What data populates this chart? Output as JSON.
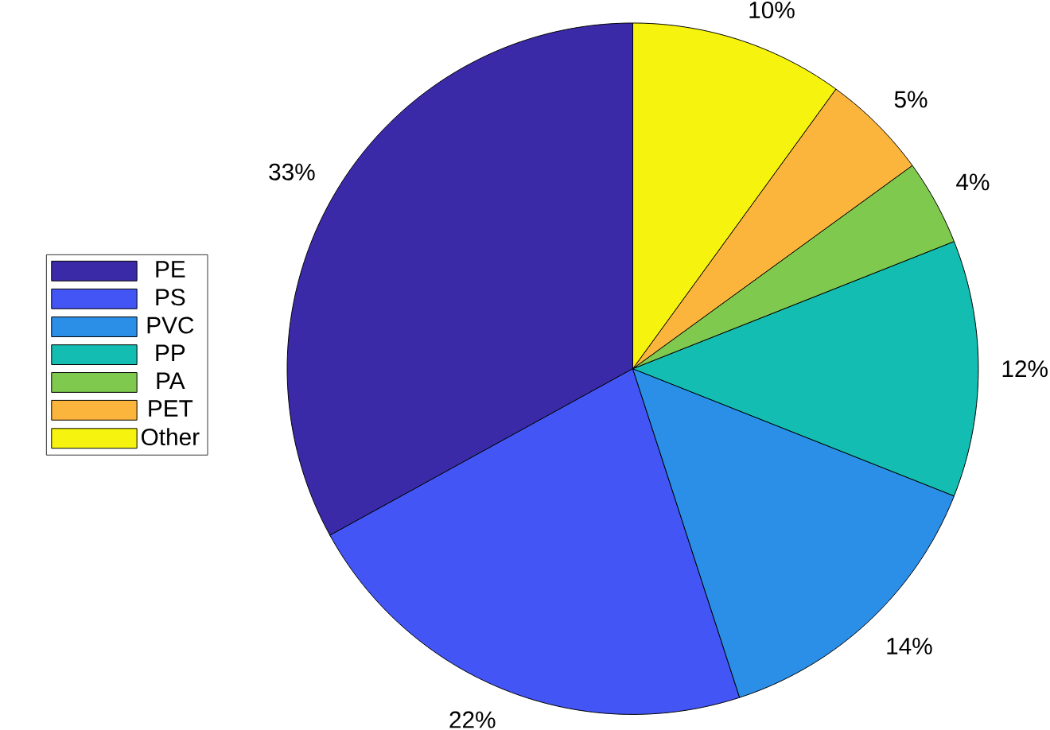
{
  "chart_data": {
    "type": "pie",
    "categories": [
      "PE",
      "PS",
      "PVC",
      "PP",
      "PA",
      "PET",
      "Other"
    ],
    "values": [
      33,
      22,
      14,
      12,
      4,
      5,
      10
    ],
    "value_labels": [
      "33%",
      "22%",
      "14%",
      "12%",
      "4%",
      "5%",
      "10%"
    ],
    "colors": [
      "#3b2aa8",
      "#4355f5",
      "#2b8fe8",
      "#14bdb1",
      "#7ec94e",
      "#fbb43c",
      "#f6f40f"
    ],
    "legend": "left"
  }
}
